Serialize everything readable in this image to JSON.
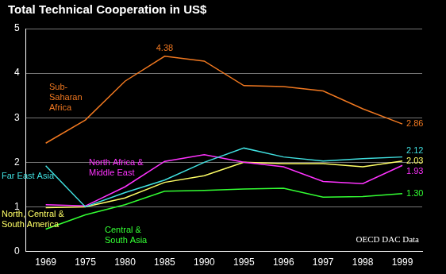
{
  "chart_data": {
    "type": "line",
    "title": "Total Technical Cooperation in US$",
    "categories": [
      "1969",
      "1975",
      "1980",
      "1985",
      "1990",
      "1995",
      "1996",
      "1997",
      "1998",
      "1999"
    ],
    "series": [
      {
        "name": "Sub-Saharan Africa",
        "color": "#f07820",
        "values": [
          2.43,
          2.95,
          3.82,
          4.38,
          4.27,
          3.72,
          3.7,
          3.6,
          3.2,
          2.86
        ],
        "value_labels": [
          null,
          null,
          null,
          "4.38",
          null,
          null,
          null,
          null,
          null,
          "2.86"
        ]
      },
      {
        "name": "Far East Asia",
        "color": "#40e0e0",
        "values": [
          1.92,
          1.0,
          1.32,
          1.6,
          2.0,
          2.32,
          2.12,
          2.03,
          2.08,
          2.12
        ],
        "value_labels": [
          null,
          null,
          null,
          null,
          null,
          null,
          null,
          null,
          null,
          "2.12"
        ]
      },
      {
        "name": "North Africa & Middle East",
        "color": "#ff33ff",
        "values": [
          1.05,
          1.02,
          1.45,
          2.02,
          2.17,
          2.0,
          1.9,
          1.57,
          1.52,
          1.93
        ],
        "value_labels": [
          null,
          null,
          null,
          null,
          null,
          null,
          null,
          null,
          null,
          "1.93"
        ]
      },
      {
        "name": "North, Central & South America",
        "color": "#ffff66",
        "values": [
          0.98,
          1.0,
          1.2,
          1.55,
          1.7,
          2.0,
          1.97,
          1.97,
          1.9,
          2.03
        ],
        "value_labels": [
          null,
          null,
          null,
          null,
          null,
          null,
          null,
          null,
          null,
          "2.03"
        ]
      },
      {
        "name": "Central & South Asia",
        "color": "#33ff33",
        "values": [
          0.5,
          0.82,
          1.05,
          1.35,
          1.37,
          1.4,
          1.42,
          1.22,
          1.23,
          1.3
        ],
        "value_labels": [
          null,
          null,
          null,
          null,
          null,
          null,
          null,
          null,
          null,
          "1.30"
        ]
      }
    ],
    "ylim": [
      0,
      5
    ],
    "yticks": [
      0,
      1,
      2,
      3,
      4,
      5
    ],
    "grid": true,
    "annotations": [
      "OECD DAC Data"
    ]
  }
}
